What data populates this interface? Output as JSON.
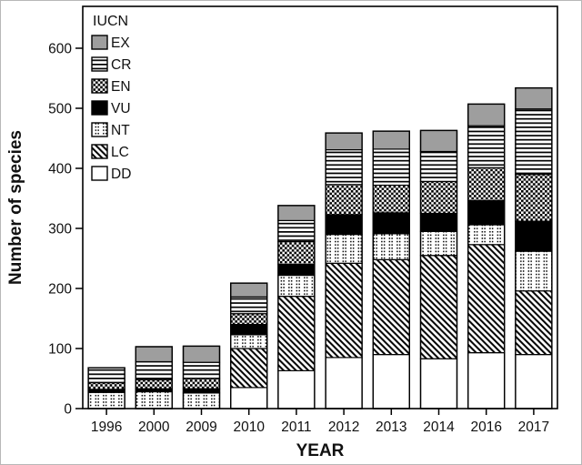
{
  "chart_data": {
    "type": "bar",
    "variant": "stacked",
    "title": "",
    "xlabel": "YEAR",
    "ylabel": "Number of species",
    "legend_title": "IUCN",
    "legend_position": "top-left-inside",
    "grid": false,
    "ylim": [
      0,
      670
    ],
    "yticks": [
      0,
      100,
      200,
      300,
      400,
      500,
      600
    ],
    "categories": [
      "1996",
      "2000",
      "2009",
      "2010",
      "2011",
      "2012",
      "2013",
      "2014",
      "2016",
      "2017"
    ],
    "legend_order_top_to_bottom": [
      "EX",
      "CR",
      "EN",
      "VU",
      "NT",
      "LC",
      "DD"
    ],
    "stack_order_bottom_to_top": [
      "DD",
      "LC",
      "NT",
      "VU",
      "EN",
      "CR",
      "EX"
    ],
    "series": [
      {
        "name": "DD",
        "pattern": "white",
        "values": [
          0,
          0,
          0,
          35,
          63,
          85,
          90,
          83,
          93,
          90
        ]
      },
      {
        "name": "LC",
        "pattern": "diagonal-stripes",
        "values": [
          0,
          0,
          0,
          65,
          124,
          157,
          158,
          172,
          180,
          106
        ]
      },
      {
        "name": "NT",
        "pattern": "dots",
        "values": [
          27,
          28,
          26,
          23,
          35,
          48,
          43,
          40,
          33,
          66
        ]
      },
      {
        "name": "VU",
        "pattern": "solid-black",
        "values": [
          5,
          5,
          7,
          17,
          18,
          33,
          35,
          30,
          40,
          50
        ]
      },
      {
        "name": "EN",
        "pattern": "checkerboard",
        "values": [
          11,
          15,
          17,
          18,
          38,
          50,
          46,
          53,
          55,
          78
        ]
      },
      {
        "name": "CR",
        "pattern": "horizontal-stripes",
        "values": [
          25,
          30,
          27,
          28,
          35,
          58,
          60,
          50,
          70,
          109
        ]
      },
      {
        "name": "EX",
        "pattern": "solid-gray",
        "values": [
          0,
          25,
          27,
          23,
          25,
          28,
          30,
          35,
          36,
          35
        ]
      }
    ],
    "approx_totals": [
      68,
      103,
      104,
      209,
      338,
      459,
      462,
      463,
      507,
      534
    ],
    "colors": {
      "gray": "#9e9e9e",
      "black": "#000000",
      "white": "#ffffff",
      "text": "#111111"
    }
  }
}
